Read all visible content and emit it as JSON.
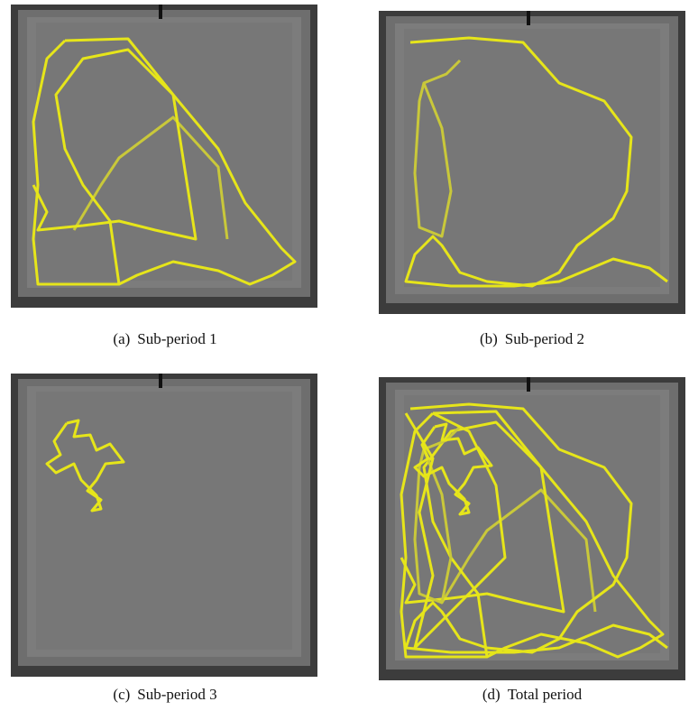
{
  "panels": [
    {
      "label": "(a)",
      "caption": "Sub-period 1"
    },
    {
      "label": "(b)",
      "caption": "Sub-period 2"
    },
    {
      "label": "(c)",
      "caption": "Sub-period 3"
    },
    {
      "label": "(d)",
      "caption": "Total period"
    }
  ]
}
